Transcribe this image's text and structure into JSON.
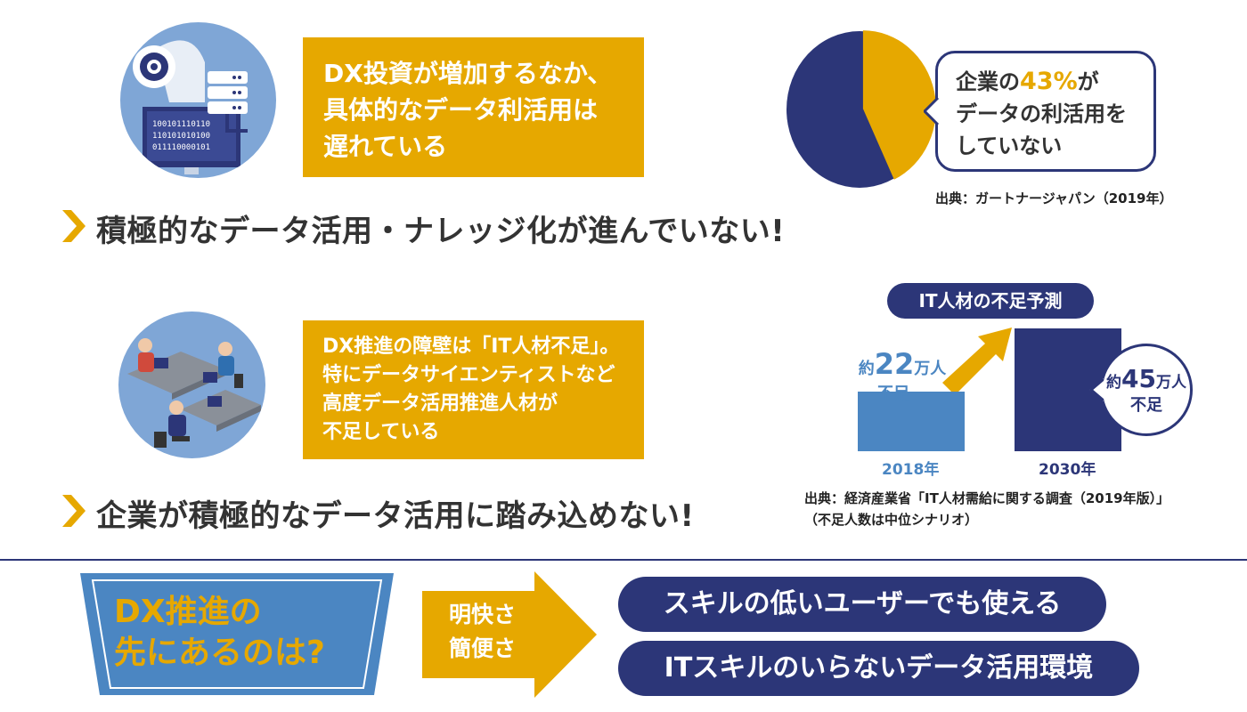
{
  "colors": {
    "navy": "#2c3678",
    "gold": "#e6a800",
    "lightblue": "#7fa6d6",
    "bar2018": "#4b86c2"
  },
  "section1": {
    "illustration": "ai-head-server-icon",
    "callout_lines": [
      "DX投資が増加するなか、",
      "具体的なデータ利活用は",
      "遅れている"
    ],
    "headline": "積極的なデータ活用・ナレッジ化が進んでいない!",
    "pie": {
      "percent_not_using": 43,
      "bubble_pre": "企業の",
      "bubble_accent": "43%",
      "bubble_post": "が",
      "bubble_line2": "データの利活用を",
      "bubble_line3": "していない",
      "source": "出典：ガートナージャパン（2019年）"
    }
  },
  "section2": {
    "illustration": "office-workers-icon",
    "callout_lines": [
      "DX推進の障壁は「IT人材不足」。",
      "特にデータサイエンティストなど",
      "高度データ活用推進人材が",
      "不足している"
    ],
    "headline": "企業が積極的なデータ活用に踏み込めない!",
    "chart_data": {
      "type": "bar",
      "title": "IT人材の不足予測",
      "categories": [
        "2018年",
        "2030年"
      ],
      "values": [
        22,
        45
      ],
      "labels": [
        {
          "pre": "約",
          "num": "22",
          "unit": "万人",
          "post": "不足"
        },
        {
          "pre": "約",
          "num": "45",
          "unit": "万人",
          "post": "不足"
        }
      ]
    },
    "source_line1": "出典：経済産業省「IT人材需給に関する調査（2019年版）」",
    "source_line2": "（不足人数は中位シナリオ）"
  },
  "bottom": {
    "question_line1": "DX推進の",
    "question_line2": "先にあるのは?",
    "arrow_line1": "明快さ",
    "arrow_line2": "簡便さ",
    "pill1": "スキルの低いユーザーでも使える",
    "pill2": "ITスキルのいらないデータ活用環境"
  }
}
